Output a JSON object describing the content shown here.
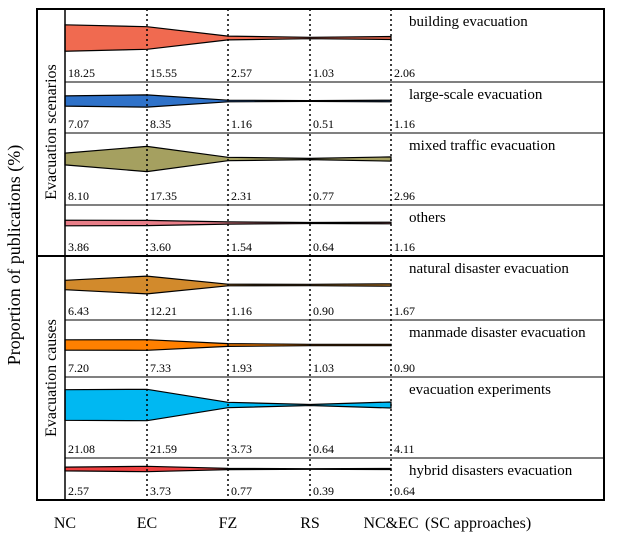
{
  "chart_data": {
    "type": "area",
    "ylabel": "Proportion of publications (%)",
    "x": [
      "NC",
      "EC",
      "FZ",
      "RS",
      "NC&EC"
    ],
    "x_suffix": "(SC approaches)",
    "groups": [
      {
        "name": "Evacuation scenarios",
        "rows": [
          {
            "name": "building evacuation",
            "values": [
              18.25,
              15.55,
              2.57,
              1.03,
              2.06
            ],
            "color": "#f06a50"
          },
          {
            "name": "large-scale evacuation",
            "values": [
              7.07,
              8.35,
              1.16,
              0.51,
              1.16
            ],
            "color": "#2f72c9"
          },
          {
            "name": "mixed traffic evacuation",
            "values": [
              8.1,
              17.35,
              2.31,
              0.77,
              2.96
            ],
            "color": "#a5a060"
          },
          {
            "name": "others",
            "values": [
              3.86,
              3.6,
              1.54,
              0.64,
              1.16
            ],
            "color": "#e87e88"
          }
        ]
      },
      {
        "name": "Evacuation causes",
        "rows": [
          {
            "name": "natural disaster evacuation",
            "values": [
              6.43,
              12.21,
              1.16,
              0.9,
              1.67
            ],
            "color": "#d28a2c"
          },
          {
            "name": "manmade disaster evacuation",
            "values": [
              7.2,
              7.33,
              1.93,
              1.03,
              0.9
            ],
            "color": "#ff8000"
          },
          {
            "name": "evacuation experiments",
            "values": [
              21.08,
              21.59,
              3.73,
              0.64,
              4.11
            ],
            "color": "#00b8f2"
          },
          {
            "name": "hybrid disasters evacuation",
            "values": [
              2.57,
              3.73,
              0.77,
              0.39,
              0.64
            ],
            "color": "#ee3f3f"
          }
        ]
      }
    ],
    "value_labels": [
      [
        "18.25",
        "15.55",
        "2.57",
        "1.03",
        "2.06"
      ],
      [
        "7.07",
        "8.35",
        "1.16",
        "0.51",
        "1.16"
      ],
      [
        "8.10",
        "17.35",
        "2.31",
        "0.77",
        "2.96"
      ],
      [
        "3.86",
        "3.60",
        "1.54",
        "0.64",
        "1.16"
      ],
      [
        "6.43",
        "12.21",
        "1.16",
        "0.90",
        "1.67"
      ],
      [
        "7.20",
        "7.33",
        "1.93",
        "1.03",
        "0.90"
      ],
      [
        "21.08",
        "21.59",
        "3.73",
        "0.64",
        "4.11"
      ],
      [
        "2.57",
        "3.73",
        "0.77",
        "0.39",
        "0.64"
      ]
    ]
  }
}
